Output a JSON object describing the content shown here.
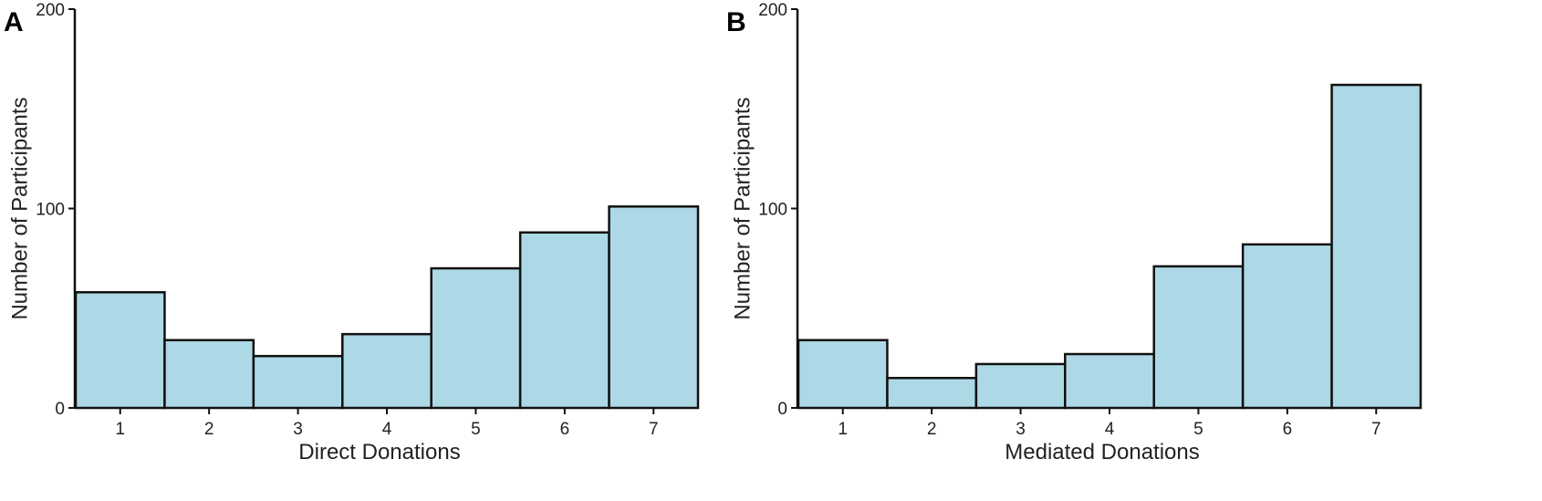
{
  "chart_data": [
    {
      "panel": "A",
      "type": "bar",
      "xlabel": "Direct Donations",
      "ylabel": "Number of Participants",
      "categories": [
        "1",
        "2",
        "3",
        "4",
        "5",
        "6",
        "7"
      ],
      "values": [
        58,
        34,
        26,
        37,
        70,
        88,
        101
      ],
      "ylim": [
        0,
        200
      ],
      "yticks": [
        0,
        100,
        200
      ],
      "bar_color": "#add8e6",
      "grid": false
    },
    {
      "panel": "B",
      "type": "bar",
      "xlabel": "Mediated Donations",
      "ylabel": "Number of Participants",
      "categories": [
        "1",
        "2",
        "3",
        "4",
        "5",
        "6",
        "7"
      ],
      "values": [
        34,
        15,
        22,
        27,
        71,
        82,
        162
      ],
      "ylim": [
        0,
        200
      ],
      "yticks": [
        0,
        100,
        200
      ],
      "bar_color": "#add8e6",
      "grid": false
    }
  ]
}
